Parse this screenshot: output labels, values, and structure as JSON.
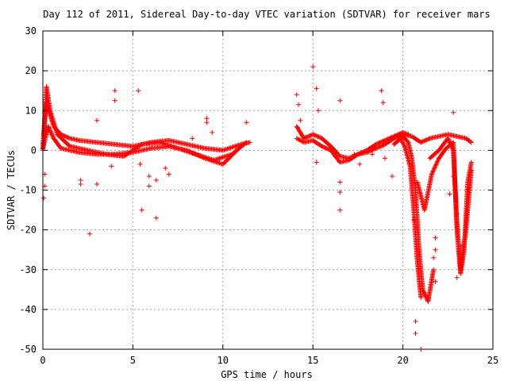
{
  "chart_data": {
    "type": "scatter",
    "title": "Day 112 of 2011, Sidereal Day-to-day VTEC variation (SDTVAR) for receiver mars",
    "xlabel": "GPS time / hours",
    "ylabel": "SDTVAR / TECUs",
    "xlim": [
      0,
      25
    ],
    "ylim": [
      -50,
      30
    ],
    "xticks": [
      0,
      5,
      10,
      15,
      20,
      25
    ],
    "yticks": [
      -50,
      -40,
      -30,
      -20,
      -10,
      0,
      10,
      20,
      30
    ],
    "grid": true,
    "legend": "none",
    "marker": "plus",
    "color": "#ff0000",
    "series": [
      {
        "values_dense_tracks": [
          {
            "x": [
              0.0,
              0.2,
              0.4,
              0.6,
              1.0,
              1.5,
              2.0,
              3.0,
              4.0,
              5.0,
              6.0,
              7.0,
              8.0,
              9.0,
              10.0,
              11.0,
              11.5
            ],
            "y": [
              1.5,
              12.0,
              9.0,
              6.0,
              4.0,
              3.0,
              2.5,
              2.0,
              1.5,
              1.0,
              2.0,
              2.5,
              1.5,
              0.5,
              0.0,
              1.5,
              2.0
            ]
          },
          {
            "x": [
              0.0,
              0.3,
              0.6,
              1.0,
              2.0,
              3.0,
              4.0,
              5.0,
              6.0,
              7.0,
              8.0,
              9.0,
              10.0,
              11.0
            ],
            "y": [
              0.5,
              6.0,
              3.0,
              0.5,
              -0.5,
              -1.0,
              -1.0,
              -0.5,
              0.5,
              1.0,
              0.0,
              -2.0,
              -3.5,
              1.0
            ]
          },
          {
            "x": [
              0.0,
              0.2,
              0.4,
              0.8,
              1.5,
              2.5,
              3.5,
              4.5,
              5.5,
              6.5,
              7.5,
              8.5,
              9.5,
              10.5,
              11.3
            ],
            "y": [
              0.0,
              16.0,
              10.0,
              4.0,
              1.0,
              0.0,
              -1.0,
              -1.5,
              1.5,
              2.0,
              0.5,
              -1.0,
              -2.5,
              -1.0,
              2.0
            ]
          },
          {
            "x": [
              14.1,
              14.5,
              15.0,
              15.5,
              16.0,
              16.5,
              17.0,
              17.5,
              18.0,
              18.5,
              19.0,
              19.5,
              20.0,
              20.5,
              21.0,
              21.5,
              22.0,
              22.5,
              23.0,
              23.5,
              23.8
            ],
            "y": [
              6.0,
              3.0,
              4.0,
              3.0,
              1.0,
              -1.5,
              -2.0,
              -1.0,
              -0.5,
              0.5,
              1.5,
              3.0,
              4.0,
              3.5,
              2.0,
              3.0,
              3.5,
              4.0,
              3.5,
              3.0,
              2.0
            ]
          },
          {
            "x": [
              14.1,
              14.5,
              15.0,
              15.5,
              16.0,
              16.5,
              17.0,
              17.5,
              18.0,
              18.5,
              19.0,
              19.5,
              20.0,
              20.3
            ],
            "y": [
              3.0,
              2.0,
              2.5,
              1.0,
              0.0,
              -3.0,
              -2.5,
              -1.0,
              0.0,
              1.5,
              2.5,
              3.5,
              4.5,
              4.0
            ]
          },
          {
            "x": [
              19.5,
              20.0,
              20.3,
              20.5,
              20.7,
              20.9,
              21.1,
              21.4,
              21.7
            ],
            "y": [
              1.5,
              3.5,
              2.0,
              -2.0,
              -10.0,
              -25.0,
              -35.0,
              -38.0,
              -30.0
            ]
          },
          {
            "x": [
              19.8,
              20.1,
              20.4,
              20.6,
              20.8,
              21.0
            ],
            "y": [
              3.5,
              1.0,
              -4.0,
              -15.0,
              -28.0,
              -37.0
            ]
          },
          {
            "x": [
              20.8,
              21.2,
              21.6,
              22.0,
              22.4,
              22.8,
              23.0,
              23.2,
              23.4,
              23.6,
              23.8
            ],
            "y": [
              -8.0,
              -15.0,
              -6.0,
              -2.0,
              0.5,
              2.0,
              -20.0,
              -31.0,
              -25.0,
              -8.0,
              -3.0
            ]
          },
          {
            "x": [
              21.5,
              22.0,
              22.5,
              22.8,
              23.0,
              23.2,
              23.5,
              23.8
            ],
            "y": [
              -2.0,
              0.0,
              3.0,
              0.0,
              -18.0,
              -30.0,
              -20.0,
              -5.0
            ]
          }
        ],
        "outliers": [
          [
            0.05,
            -12.0
          ],
          [
            0.1,
            -9.0
          ],
          [
            0.1,
            -6.0
          ],
          [
            2.1,
            -7.5
          ],
          [
            2.1,
            -8.5
          ],
          [
            2.6,
            -21.0
          ],
          [
            3.0,
            7.5
          ],
          [
            3.0,
            -8.5
          ],
          [
            3.8,
            -4.0
          ],
          [
            4.0,
            15.0
          ],
          [
            4.0,
            12.5
          ],
          [
            5.3,
            15.0
          ],
          [
            5.4,
            -3.5
          ],
          [
            5.5,
            -15.0
          ],
          [
            5.9,
            -6.5
          ],
          [
            5.9,
            -9.0
          ],
          [
            6.3,
            -17.0
          ],
          [
            6.3,
            -7.5
          ],
          [
            6.8,
            -4.5
          ],
          [
            7.0,
            -6.0
          ],
          [
            8.3,
            3.0
          ],
          [
            9.1,
            8.0
          ],
          [
            9.1,
            7.0
          ],
          [
            9.4,
            4.5
          ],
          [
            11.3,
            7.0
          ],
          [
            14.1,
            14.0
          ],
          [
            14.2,
            11.5
          ],
          [
            14.3,
            7.5
          ],
          [
            15.0,
            21.0
          ],
          [
            15.2,
            15.5
          ],
          [
            15.3,
            10.0
          ],
          [
            15.2,
            -3.0
          ],
          [
            16.5,
            12.5
          ],
          [
            16.5,
            -8.0
          ],
          [
            16.5,
            -10.5
          ],
          [
            16.5,
            -15.0
          ],
          [
            17.3,
            -1.0
          ],
          [
            17.6,
            -3.5
          ],
          [
            18.3,
            -1.0
          ],
          [
            18.8,
            15.0
          ],
          [
            18.9,
            12.0
          ],
          [
            19.0,
            -2.0
          ],
          [
            19.4,
            -6.5
          ],
          [
            20.6,
            -17.5
          ],
          [
            20.7,
            -43.0
          ],
          [
            20.7,
            -46.0
          ],
          [
            21.0,
            -50.0
          ],
          [
            21.7,
            -27.0
          ],
          [
            21.8,
            -22.0
          ],
          [
            21.8,
            -25.0
          ],
          [
            21.8,
            -33.0
          ],
          [
            22.6,
            -11.0
          ],
          [
            22.8,
            9.5
          ],
          [
            22.8,
            -6.5
          ],
          [
            23.0,
            -16.0
          ],
          [
            23.0,
            -32.0
          ],
          [
            23.2,
            -24.0
          ]
        ]
      }
    ]
  }
}
